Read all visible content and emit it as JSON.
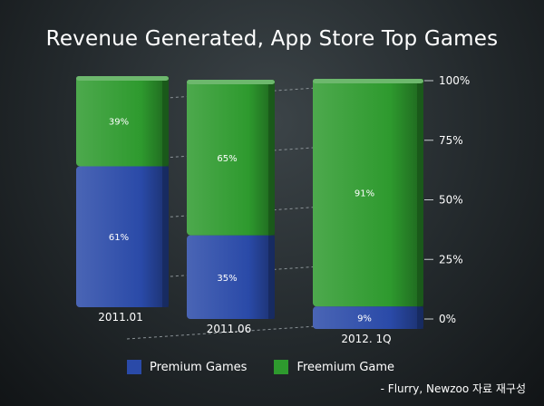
{
  "chart_data": {
    "type": "bar",
    "stacked": true,
    "title": "Revenue Generated, App Store Top Games",
    "categories": [
      "2011.01",
      "2011.06",
      "2012. 1Q"
    ],
    "series": [
      {
        "name": "Premium Games",
        "values": [
          61,
          35,
          9
        ],
        "labels": [
          "61%",
          "35%",
          "9%"
        ],
        "color": "#2a4aa8"
      },
      {
        "name": "Freemium Game",
        "values": [
          39,
          65,
          91
        ],
        "labels": [
          "39%",
          "65%",
          "91%"
        ],
        "color": "#2e9a2e"
      }
    ],
    "y_ticks": [
      0,
      25,
      50,
      75,
      100
    ],
    "y_tick_labels": [
      "0%",
      "25%",
      "50%",
      "75%",
      "100%"
    ],
    "ylim": [
      0,
      100
    ],
    "legend_position": "bottom"
  },
  "source_note": "- Flurry, Newzoo 자료 재구성",
  "colors": {
    "background": "#23292c",
    "premium": "#2a4aa8",
    "freemium": "#2e9a2e"
  }
}
